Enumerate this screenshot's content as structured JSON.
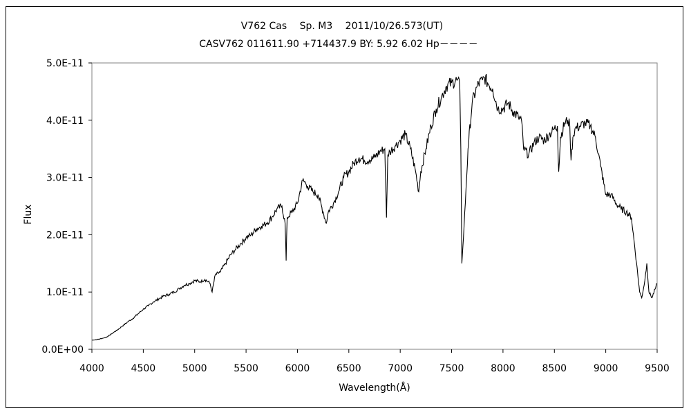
{
  "chart_data": {
    "type": "line",
    "title": "V762 Cas　 Sp. M3　 2011/10/26.573(UT)",
    "subtitle": "CASV762 011611.90 +714437.9 BY: 5.92 6.02 Hp－－－－",
    "xlabel": "Wavelength(Å)",
    "ylabel": "Flux",
    "xlim": [
      4000,
      9500
    ],
    "ylim": [
      0,
      5e-11
    ],
    "x_ticks": [
      "4000",
      "4500",
      "5000",
      "5500",
      "6000",
      "6500",
      "7000",
      "7500",
      "8000",
      "8500",
      "9000",
      "9500"
    ],
    "y_ticks": [
      "0.0E+00",
      "1.0E-11",
      "2.0E-11",
      "3.0E-11",
      "4.0E-11",
      "5.0E-11"
    ],
    "grid": false,
    "legend": "none",
    "series_color": "#000000",
    "series": [
      {
        "x": [
          4000,
          4050,
          4100,
          4150,
          4200,
          4250,
          4300,
          4350,
          4400,
          4450,
          4500,
          4550,
          4600,
          4650,
          4700,
          4750,
          4800,
          4850,
          4900,
          4950,
          5000,
          5050,
          5100,
          5150,
          5170,
          5200,
          5250,
          5300,
          5350,
          5400,
          5450,
          5500,
          5550,
          5600,
          5650,
          5700,
          5750,
          5800,
          5850,
          5880,
          5890,
          5900,
          5950,
          6000,
          6050,
          6080,
          6100,
          6150,
          6200,
          6250,
          6280,
          6300,
          6350,
          6400,
          6450,
          6500,
          6550,
          6600,
          6650,
          6700,
          6750,
          6800,
          6850,
          6866,
          6880,
          6900,
          6950,
          7000,
          7050,
          7100,
          7150,
          7180,
          7200,
          7250,
          7300,
          7350,
          7400,
          7450,
          7500,
          7550,
          7580,
          7590,
          7600,
          7610,
          7620,
          7640,
          7660,
          7700,
          7750,
          7800,
          7820,
          7850,
          7900,
          7950,
          8000,
          8050,
          8100,
          8150,
          8180,
          8200,
          8250,
          8300,
          8350,
          8400,
          8450,
          8500,
          8530,
          8542,
          8560,
          8600,
          8630,
          8650,
          8662,
          8680,
          8700,
          8750,
          8800,
          8850,
          8900,
          8950,
          9000,
          9050,
          9100,
          9150,
          9200,
          9250,
          9300,
          9330,
          9350,
          9380,
          9400,
          9420,
          9450,
          9480,
          9500
        ],
        "y": [
          1.6e-12,
          1.7e-12,
          1.9e-12,
          2.2e-12,
          2.8e-12,
          3.4e-12,
          4.1e-12,
          4.8e-12,
          5.4e-12,
          6.2e-12,
          7e-12,
          7.6e-12,
          8.3e-12,
          8.8e-12,
          9.3e-12,
          9.6e-12,
          1e-11,
          1.06e-11,
          1.12e-11,
          1.15e-11,
          1.2e-11,
          1.18e-11,
          1.22e-11,
          1.15e-11,
          1e-11,
          1.3e-11,
          1.35e-11,
          1.5e-11,
          1.65e-11,
          1.75e-11,
          1.85e-11,
          1.95e-11,
          2e-11,
          2.1e-11,
          2.15e-11,
          2.2e-11,
          2.3e-11,
          2.45e-11,
          2.5e-11,
          2.2e-11,
          1.55e-11,
          2.3e-11,
          2.4e-11,
          2.55e-11,
          2.95e-11,
          2.9e-11,
          2.85e-11,
          2.75e-11,
          2.7e-11,
          2.4e-11,
          2.2e-11,
          2.4e-11,
          2.55e-11,
          2.75e-11,
          3e-11,
          3.1e-11,
          3.25e-11,
          3.35e-11,
          3.3e-11,
          3.3e-11,
          3.35e-11,
          3.45e-11,
          3.5e-11,
          2.3e-11,
          3.4e-11,
          3.45e-11,
          3.55e-11,
          3.65e-11,
          3.75e-11,
          3.5e-11,
          3.1e-11,
          2.75e-11,
          3.1e-11,
          3.5e-11,
          3.9e-11,
          4.2e-11,
          4.4e-11,
          4.6e-11,
          4.65e-11,
          4.7e-11,
          4.6e-11,
          3.5e-11,
          1.5e-11,
          1.8e-11,
          2.1e-11,
          2.8e-11,
          3.5e-11,
          4.3e-11,
          4.6e-11,
          4.7e-11,
          4.75e-11,
          4.65e-11,
          4.55e-11,
          4.2e-11,
          4.2e-11,
          4.3e-11,
          4.15e-11,
          4.05e-11,
          4e-11,
          3.5e-11,
          3.4e-11,
          3.6e-11,
          3.7e-11,
          3.65e-11,
          3.75e-11,
          3.85e-11,
          3.9e-11,
          3.1e-11,
          3.7e-11,
          3.95e-11,
          4e-11,
          3.9e-11,
          3.3e-11,
          3.7e-11,
          3.85e-11,
          3.9e-11,
          3.95e-11,
          3.9e-11,
          3.7e-11,
          3.2e-11,
          2.7e-11,
          2.7e-11,
          2.55e-11,
          2.45e-11,
          2.4e-11,
          2.3e-11,
          1.5e-11,
          1e-11,
          9e-12,
          1.2e-11,
          1.5e-11,
          1e-11,
          9e-12,
          1.05e-11,
          1.15e-11
        ]
      }
    ]
  }
}
